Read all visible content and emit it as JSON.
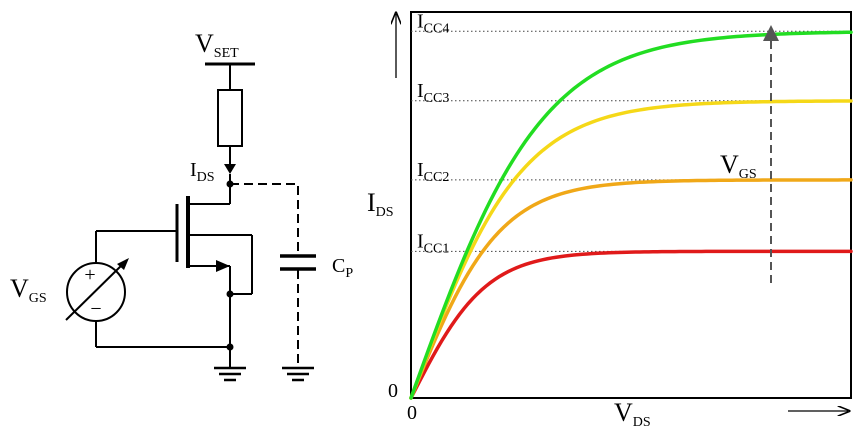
{
  "circuit": {
    "vset": {
      "main": "V",
      "sub": "SET"
    },
    "ids": {
      "main": "I",
      "sub": "DS"
    },
    "vgs": {
      "main": "V",
      "sub": "GS"
    },
    "cp": {
      "main": "C",
      "sub": "P"
    },
    "plus": "+",
    "minus": "−"
  },
  "chart": {
    "ylabel": {
      "main": "I",
      "sub": "DS"
    },
    "xlabel": {
      "main": "V",
      "sub": "DS"
    },
    "vgs_arrow_label": {
      "main": "V",
      "sub": "GS"
    },
    "origin_x": "0",
    "origin_y": "0"
  },
  "chart_data": {
    "type": "line",
    "xlabel": "V_DS",
    "ylabel": "I_DS",
    "xlim": [
      0,
      1
    ],
    "ylim": [
      0,
      1
    ],
    "annotation": "V_GS",
    "series": [
      {
        "name": "I_CC1",
        "label_main": "I",
        "label_sub": "CC1",
        "saturation": 0.38,
        "knee": 0.17,
        "color": "#e01a1a"
      },
      {
        "name": "I_CC2",
        "label_main": "I",
        "label_sub": "CC2",
        "saturation": 0.565,
        "knee": 0.2,
        "color": "#f0a818"
      },
      {
        "name": "I_CC3",
        "label_main": "I",
        "label_sub": "CC3",
        "saturation": 0.77,
        "knee": 0.25,
        "color": "#f5d818"
      },
      {
        "name": "I_CC4",
        "label_main": "I",
        "label_sub": "CC4",
        "saturation": 0.95,
        "knee": 0.3,
        "color": "#22dd22"
      }
    ]
  }
}
